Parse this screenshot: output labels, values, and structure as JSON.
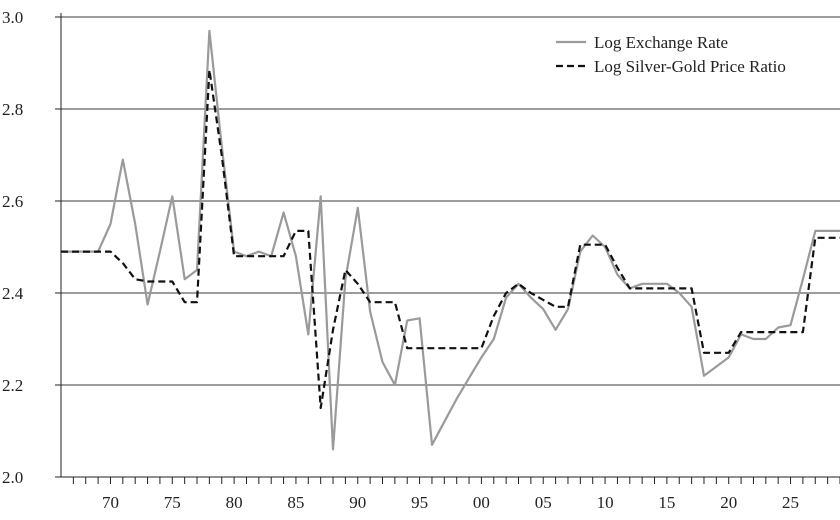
{
  "chart_data": {
    "type": "line",
    "x_tick_labels": [
      "70",
      "75",
      "80",
      "85",
      "90",
      "95",
      "00",
      "05",
      "10",
      "15",
      "20",
      "25"
    ],
    "y_tick_labels": [
      "2.0",
      "2.2",
      "2.4",
      "2.6",
      "2.8",
      "3.0"
    ],
    "xlim": [
      1766,
      1829
    ],
    "ylim": [
      2.0,
      3.0
    ],
    "grid": "horizontal",
    "legend_position": "top-right",
    "colors": {
      "exchange": "#9a9a9a",
      "ratio": "#111111",
      "grid": "#3a3a3a"
    },
    "series": [
      {
        "name": "Log Exchange Rate",
        "style": "solid",
        "x": [
          1766,
          1767,
          1768,
          1769,
          1770,
          1771,
          1772,
          1773,
          1774,
          1775,
          1776,
          1777,
          1778,
          1779,
          1780,
          1781,
          1782,
          1783,
          1784,
          1785,
          1786,
          1787,
          1788,
          1789,
          1790,
          1791,
          1792,
          1793,
          1794,
          1795,
          1796,
          1797,
          1798,
          1799,
          1800,
          1801,
          1802,
          1803,
          1804,
          1805,
          1806,
          1807,
          1808,
          1809,
          1810,
          1811,
          1812,
          1813,
          1814,
          1815,
          1816,
          1817,
          1818,
          1819,
          1820,
          1821,
          1822,
          1823,
          1824,
          1825,
          1826,
          1827,
          1828,
          1829
        ],
        "y": [
          2.49,
          2.49,
          2.49,
          2.49,
          2.55,
          2.69,
          2.55,
          2.375,
          2.49,
          2.61,
          2.43,
          2.45,
          2.97,
          2.72,
          2.49,
          2.48,
          2.49,
          2.48,
          2.575,
          2.48,
          2.31,
          2.61,
          2.06,
          2.43,
          2.585,
          2.36,
          2.25,
          2.2,
          2.34,
          2.345,
          2.07,
          2.12,
          2.17,
          2.215,
          2.26,
          2.3,
          2.39,
          2.42,
          2.39,
          2.365,
          2.32,
          2.365,
          2.49,
          2.525,
          2.5,
          2.44,
          2.41,
          2.42,
          2.42,
          2.42,
          2.4,
          2.37,
          2.22,
          2.24,
          2.26,
          2.31,
          2.3,
          2.3,
          2.325,
          2.33,
          2.43,
          2.535,
          2.535,
          2.535
        ]
      },
      {
        "name": "Log Silver-Gold Price Ratio",
        "style": "dashed",
        "x": [
          1766,
          1767,
          1768,
          1769,
          1770,
          1771,
          1772,
          1773,
          1774,
          1775,
          1776,
          1777,
          1778,
          1779,
          1780,
          1781,
          1782,
          1783,
          1784,
          1785,
          1786,
          1787,
          1788,
          1789,
          1790,
          1791,
          1792,
          1793,
          1794,
          1795,
          1796,
          1797,
          1798,
          1799,
          1800,
          1801,
          1802,
          1803,
          1804,
          1805,
          1806,
          1807,
          1808,
          1809,
          1810,
          1811,
          1812,
          1813,
          1814,
          1815,
          1816,
          1817,
          1818,
          1819,
          1820,
          1821,
          1822,
          1823,
          1824,
          1825,
          1826,
          1827,
          1828,
          1829
        ],
        "y": [
          2.49,
          2.49,
          2.49,
          2.49,
          2.49,
          2.465,
          2.43,
          2.425,
          2.425,
          2.425,
          2.38,
          2.38,
          2.885,
          2.7,
          2.48,
          2.48,
          2.48,
          2.48,
          2.48,
          2.535,
          2.535,
          2.15,
          2.32,
          2.45,
          2.42,
          2.38,
          2.38,
          2.38,
          2.28,
          2.28,
          2.28,
          2.28,
          2.28,
          2.28,
          2.28,
          2.35,
          2.4,
          2.42,
          2.4,
          2.385,
          2.37,
          2.37,
          2.505,
          2.505,
          2.505,
          2.455,
          2.41,
          2.41,
          2.41,
          2.41,
          2.41,
          2.41,
          2.27,
          2.27,
          2.27,
          2.315,
          2.315,
          2.315,
          2.315,
          2.315,
          2.315,
          2.52,
          2.52,
          2.52
        ]
      }
    ]
  }
}
